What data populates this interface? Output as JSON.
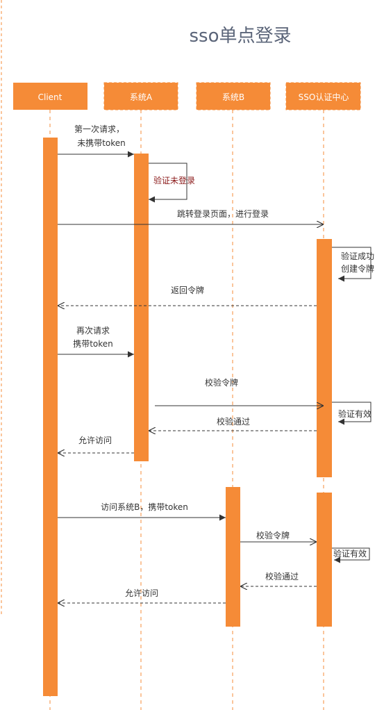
{
  "title": "sso单点登录",
  "colors": {
    "accent": "#f58b37",
    "line": "#333333",
    "lifeline": "#f58b37",
    "title": "#5a6478",
    "highlight_text": "#8b1a1a"
  },
  "participants": {
    "client": "Client",
    "sys_a": "系统A",
    "sys_b": "系统B",
    "sso": "SSO认证中心"
  },
  "messages": {
    "m1_l1": "第一次请求，",
    "m1_l2": "未携带token",
    "m2": "验证未登录",
    "m3": "跳转登录页面，进行登录",
    "m4_l1": "验证成功",
    "m4_l2": "创建令牌",
    "m5": "返回令牌",
    "m6_l1": "再次请求",
    "m6_l2": "携带token",
    "m7": "校验令牌",
    "m8": "验证有效",
    "m9": "校验通过",
    "m10": "允许访问",
    "m11": "访问系统B，携带token",
    "m12": "校验令牌",
    "m13": "验证有效",
    "m14": "校验通过",
    "m15": "允许访问"
  }
}
